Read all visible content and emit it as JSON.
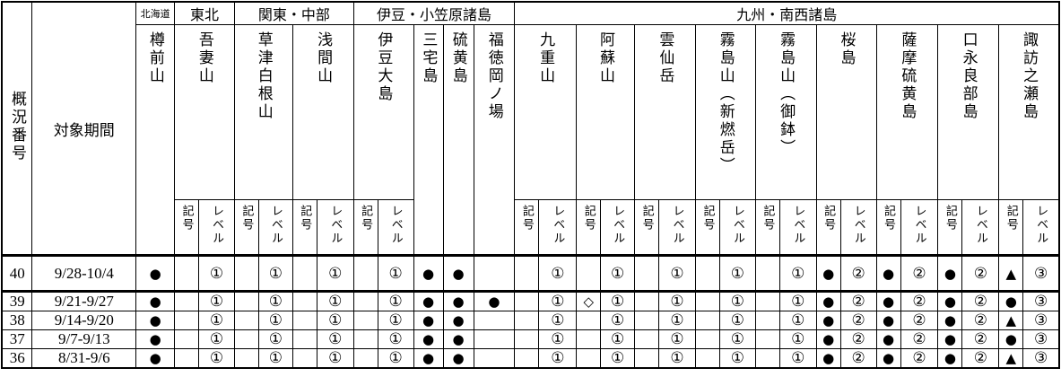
{
  "table": {
    "corner": {
      "no_header": "概況番号",
      "period_header": "対象期間"
    },
    "subheader": {
      "symbol_label": "記号",
      "level_label": "レベル"
    },
    "colors": {
      "ink": "#000000",
      "background": "#ffffff"
    },
    "symbols_seen": {
      "filled_circle": "●",
      "filled_triangle": "▲",
      "open_diamond": "◇",
      "level_1": "①",
      "level_2": "②",
      "level_3": "③"
    },
    "regions": [
      {
        "label": "北海道",
        "volcanoes": [
          {
            "name": "樽前山",
            "has_level": false
          }
        ]
      },
      {
        "label": "東北",
        "volcanoes": [
          {
            "name": "吾妻山",
            "has_level": true
          }
        ]
      },
      {
        "label": "関東・中部",
        "volcanoes": [
          {
            "name": "草津白根山",
            "has_level": true
          },
          {
            "name": "浅間山",
            "has_level": true
          }
        ]
      },
      {
        "label": "伊豆・小笠原諸島",
        "volcanoes": [
          {
            "name": "伊豆大島",
            "has_level": true
          },
          {
            "name": "三宅島",
            "has_level": false
          },
          {
            "name": "硫黄島",
            "has_level": false
          },
          {
            "name": "福徳岡ノ場",
            "has_level": false
          }
        ]
      },
      {
        "label": "九州・南西諸島",
        "volcanoes": [
          {
            "name": "九重山",
            "has_level": true
          },
          {
            "name": "阿蘇山",
            "has_level": true
          },
          {
            "name": "雲仙岳",
            "has_level": true
          },
          {
            "name": "霧島山（新燃岳）",
            "has_level": true
          },
          {
            "name": "霧島山（御鉢）",
            "has_level": true
          },
          {
            "name": "桜島",
            "has_level": true
          },
          {
            "name": "薩摩硫黄島",
            "has_level": true
          },
          {
            "name": "口永良部島",
            "has_level": true
          },
          {
            "name": "諏訪之瀬島",
            "has_level": true
          }
        ]
      }
    ],
    "rows": [
      {
        "no": "40",
        "period": "9/28-10/4",
        "values": [
          {
            "symbol": "●"
          },
          {
            "symbol": "",
            "level": "①"
          },
          {
            "symbol": "",
            "level": "①"
          },
          {
            "symbol": "",
            "level": "①"
          },
          {
            "symbol": "",
            "level": "①"
          },
          {
            "symbol": "●"
          },
          {
            "symbol": "●"
          },
          {
            "symbol": ""
          },
          {
            "symbol": "",
            "level": "①"
          },
          {
            "symbol": "",
            "level": "①"
          },
          {
            "symbol": "",
            "level": "①"
          },
          {
            "symbol": "",
            "level": "①"
          },
          {
            "symbol": "",
            "level": "①"
          },
          {
            "symbol": "●",
            "level": "②"
          },
          {
            "symbol": "●",
            "level": "②"
          },
          {
            "symbol": "●",
            "level": "②"
          },
          {
            "symbol": "▲",
            "level": "③"
          }
        ]
      },
      {
        "no": "39",
        "period": "9/21-9/27",
        "values": [
          {
            "symbol": "●"
          },
          {
            "symbol": "",
            "level": "①"
          },
          {
            "symbol": "",
            "level": "①"
          },
          {
            "symbol": "",
            "level": "①"
          },
          {
            "symbol": "",
            "level": "①"
          },
          {
            "symbol": "●"
          },
          {
            "symbol": "●"
          },
          {
            "symbol": "●"
          },
          {
            "symbol": "",
            "level": "①"
          },
          {
            "symbol": "◇",
            "level": "①"
          },
          {
            "symbol": "",
            "level": "①"
          },
          {
            "symbol": "",
            "level": "①"
          },
          {
            "symbol": "",
            "level": "①"
          },
          {
            "symbol": "●",
            "level": "②"
          },
          {
            "symbol": "●",
            "level": "②"
          },
          {
            "symbol": "●",
            "level": "②"
          },
          {
            "symbol": "●",
            "level": "③"
          }
        ]
      },
      {
        "no": "38",
        "period": "9/14-9/20",
        "values": [
          {
            "symbol": "●"
          },
          {
            "symbol": "",
            "level": "①"
          },
          {
            "symbol": "",
            "level": "①"
          },
          {
            "symbol": "",
            "level": "①"
          },
          {
            "symbol": "",
            "level": "①"
          },
          {
            "symbol": "●"
          },
          {
            "symbol": "●"
          },
          {
            "symbol": ""
          },
          {
            "symbol": "",
            "level": "①"
          },
          {
            "symbol": "",
            "level": "①"
          },
          {
            "symbol": "",
            "level": "①"
          },
          {
            "symbol": "",
            "level": "①"
          },
          {
            "symbol": "",
            "level": "①"
          },
          {
            "symbol": "●",
            "level": "②"
          },
          {
            "symbol": "●",
            "level": "②"
          },
          {
            "symbol": "●",
            "level": "②"
          },
          {
            "symbol": "▲",
            "level": "③"
          }
        ]
      },
      {
        "no": "37",
        "period": "9/7-9/13",
        "values": [
          {
            "symbol": "●"
          },
          {
            "symbol": "",
            "level": "①"
          },
          {
            "symbol": "",
            "level": "①"
          },
          {
            "symbol": "",
            "level": "①"
          },
          {
            "symbol": "",
            "level": "①"
          },
          {
            "symbol": "●"
          },
          {
            "symbol": "●"
          },
          {
            "symbol": ""
          },
          {
            "symbol": "",
            "level": "①"
          },
          {
            "symbol": "",
            "level": "①"
          },
          {
            "symbol": "",
            "level": "①"
          },
          {
            "symbol": "",
            "level": "①"
          },
          {
            "symbol": "",
            "level": "①"
          },
          {
            "symbol": "●",
            "level": "②"
          },
          {
            "symbol": "●",
            "level": "②"
          },
          {
            "symbol": "●",
            "level": "②"
          },
          {
            "symbol": "●",
            "level": "③"
          }
        ]
      },
      {
        "no": "36",
        "period": "8/31-9/6",
        "values": [
          {
            "symbol": "●"
          },
          {
            "symbol": "",
            "level": "①"
          },
          {
            "symbol": "",
            "level": "①"
          },
          {
            "symbol": "",
            "level": "①"
          },
          {
            "symbol": "",
            "level": "①"
          },
          {
            "symbol": "●"
          },
          {
            "symbol": "●"
          },
          {
            "symbol": ""
          },
          {
            "symbol": "",
            "level": "①"
          },
          {
            "symbol": "",
            "level": "①"
          },
          {
            "symbol": "",
            "level": "①"
          },
          {
            "symbol": "",
            "level": "①"
          },
          {
            "symbol": "",
            "level": "①"
          },
          {
            "symbol": "●",
            "level": "②"
          },
          {
            "symbol": "●",
            "level": "②"
          },
          {
            "symbol": "●",
            "level": "②"
          },
          {
            "symbol": "▲",
            "level": "③"
          }
        ]
      }
    ]
  }
}
